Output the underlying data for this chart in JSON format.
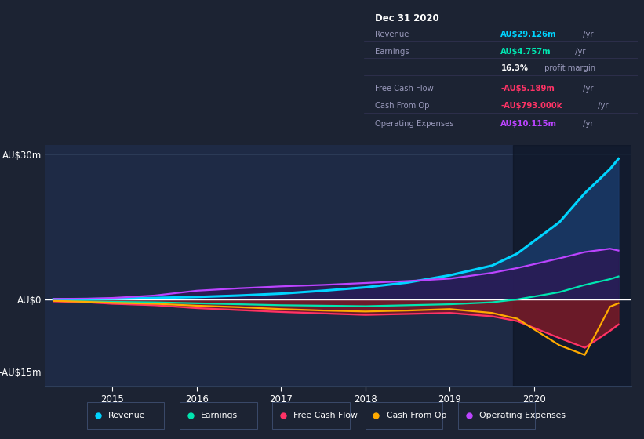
{
  "bg_color": "#1c2333",
  "plot_bg_color": "#1e2a45",
  "title": "Dec 31 2020",
  "ylim": [
    -18,
    32
  ],
  "xlim": [
    2014.2,
    2021.15
  ],
  "years": [
    2014.3,
    2014.7,
    2015.0,
    2015.5,
    2016.0,
    2016.5,
    2017.0,
    2017.5,
    2018.0,
    2018.5,
    2019.0,
    2019.5,
    2019.8,
    2020.3,
    2020.6,
    2020.9,
    2021.0
  ],
  "revenue": [
    0.05,
    0.08,
    0.12,
    0.3,
    0.5,
    0.8,
    1.2,
    1.8,
    2.5,
    3.5,
    5.0,
    7.0,
    9.5,
    16.0,
    22.0,
    27.0,
    29.126
  ],
  "earnings": [
    -0.3,
    -0.4,
    -0.5,
    -0.6,
    -0.8,
    -1.0,
    -1.2,
    -1.3,
    -1.4,
    -1.2,
    -1.0,
    -0.6,
    0.0,
    1.5,
    3.0,
    4.2,
    4.757
  ],
  "free_cash_flow": [
    -0.4,
    -0.6,
    -0.9,
    -1.2,
    -1.8,
    -2.2,
    -2.6,
    -2.9,
    -3.2,
    -3.0,
    -2.8,
    -3.5,
    -4.5,
    -8.0,
    -10.0,
    -6.5,
    -5.189
  ],
  "cash_from_op": [
    -0.3,
    -0.5,
    -0.7,
    -0.9,
    -1.3,
    -1.6,
    -2.0,
    -2.3,
    -2.5,
    -2.3,
    -2.0,
    -2.8,
    -4.0,
    -9.5,
    -11.5,
    -1.5,
    -0.793
  ],
  "operating_expenses": [
    0.1,
    0.15,
    0.3,
    0.8,
    1.8,
    2.3,
    2.7,
    3.0,
    3.4,
    3.8,
    4.3,
    5.5,
    6.5,
    8.5,
    9.8,
    10.5,
    10.115
  ],
  "revenue_color": "#00d4ff",
  "earnings_color": "#00e5b0",
  "fcf_color": "#ff3366",
  "cashop_color": "#ffaa00",
  "opex_color": "#bb44ff",
  "revenue_fill_color": "#1a3a6a",
  "fcf_fill_color": "#7a1a28",
  "opex_fill_color": "#2a1a55",
  "highlight_x_start": 2019.75,
  "highlight_x_end": 2021.15,
  "highlight_color": "#0d1525",
  "legend_items": [
    "Revenue",
    "Earnings",
    "Free Cash Flow",
    "Cash From Op",
    "Operating Expenses"
  ],
  "legend_colors": [
    "#00d4ff",
    "#00e5b0",
    "#ff3366",
    "#ffaa00",
    "#bb44ff"
  ],
  "info_box": {
    "title": "Dec 31 2020",
    "rows": [
      {
        "label": "Revenue",
        "value": "AU$29.126m",
        "value_color": "#00d4ff",
        "suffix": " /yr"
      },
      {
        "label": "Earnings",
        "value": "AU$4.757m",
        "value_color": "#00e5b0",
        "suffix": " /yr"
      },
      {
        "label": "",
        "value": "16.3%",
        "value_color": "#ffffff",
        "suffix": " profit margin"
      },
      {
        "label": "Free Cash Flow",
        "value": "-AU$5.189m",
        "value_color": "#ff3366",
        "suffix": " /yr"
      },
      {
        "label": "Cash From Op",
        "value": "-AU$793.000k",
        "value_color": "#ff3366",
        "suffix": " /yr"
      },
      {
        "label": "Operating Expenses",
        "value": "AU$10.115m",
        "value_color": "#bb44ff",
        "suffix": " /yr"
      }
    ]
  }
}
